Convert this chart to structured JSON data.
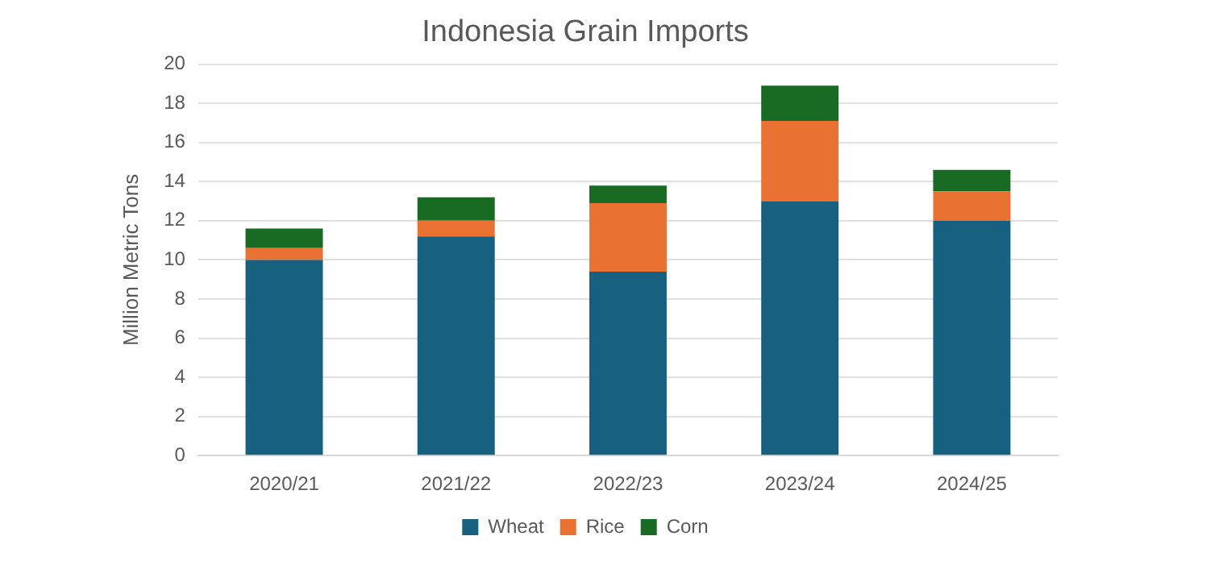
{
  "chart_data": {
    "type": "bar",
    "title": "Indonesia Grain Imports",
    "ylabel": "Million Metric Tons",
    "categories": [
      "2020/21",
      "2021/22",
      "2022/23",
      "2023/24",
      "2024/25"
    ],
    "series": [
      {
        "name": "Wheat",
        "color": "#17607f",
        "values": [
          10.0,
          11.2,
          9.4,
          13.0,
          12.0
        ]
      },
      {
        "name": "Rice",
        "color": "#e97132",
        "values": [
          0.6,
          0.8,
          3.5,
          4.1,
          1.5
        ]
      },
      {
        "name": "Corn",
        "color": "#196b24",
        "values": [
          1.0,
          1.2,
          0.9,
          1.8,
          1.1
        ]
      }
    ],
    "stacked": true,
    "ylim": [
      0,
      20
    ],
    "yticks": [
      0,
      2,
      4,
      6,
      8,
      10,
      12,
      14,
      16,
      18,
      20
    ],
    "grid": "y",
    "legend": "bottom"
  }
}
